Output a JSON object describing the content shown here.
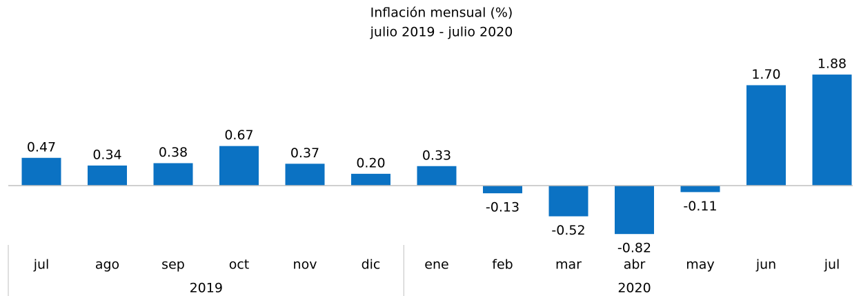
{
  "chart_data": {
    "type": "bar",
    "title": "Inflación mensual (%)",
    "subtitle": "julio 2019 - julio 2020",
    "categories": [
      "jul",
      "ago",
      "sep",
      "oct",
      "nov",
      "dic",
      "ene",
      "feb",
      "mar",
      "abr",
      "may",
      "jun",
      "jul"
    ],
    "values": [
      0.47,
      0.34,
      0.38,
      0.67,
      0.37,
      0.2,
      0.33,
      -0.13,
      -0.52,
      -0.82,
      -0.11,
      1.7,
      1.88
    ],
    "value_labels": [
      "0.47",
      "0.34",
      "0.38",
      "0.67",
      "0.37",
      "0.20",
      "0.33",
      "-0.13",
      "-0.52",
      "-0.82",
      "-0.11",
      "1.70",
      "1.88"
    ],
    "groups": [
      {
        "name": "2019",
        "count": 6
      },
      {
        "name": "2020",
        "count": 7
      }
    ],
    "color": "#0b72c3"
  }
}
